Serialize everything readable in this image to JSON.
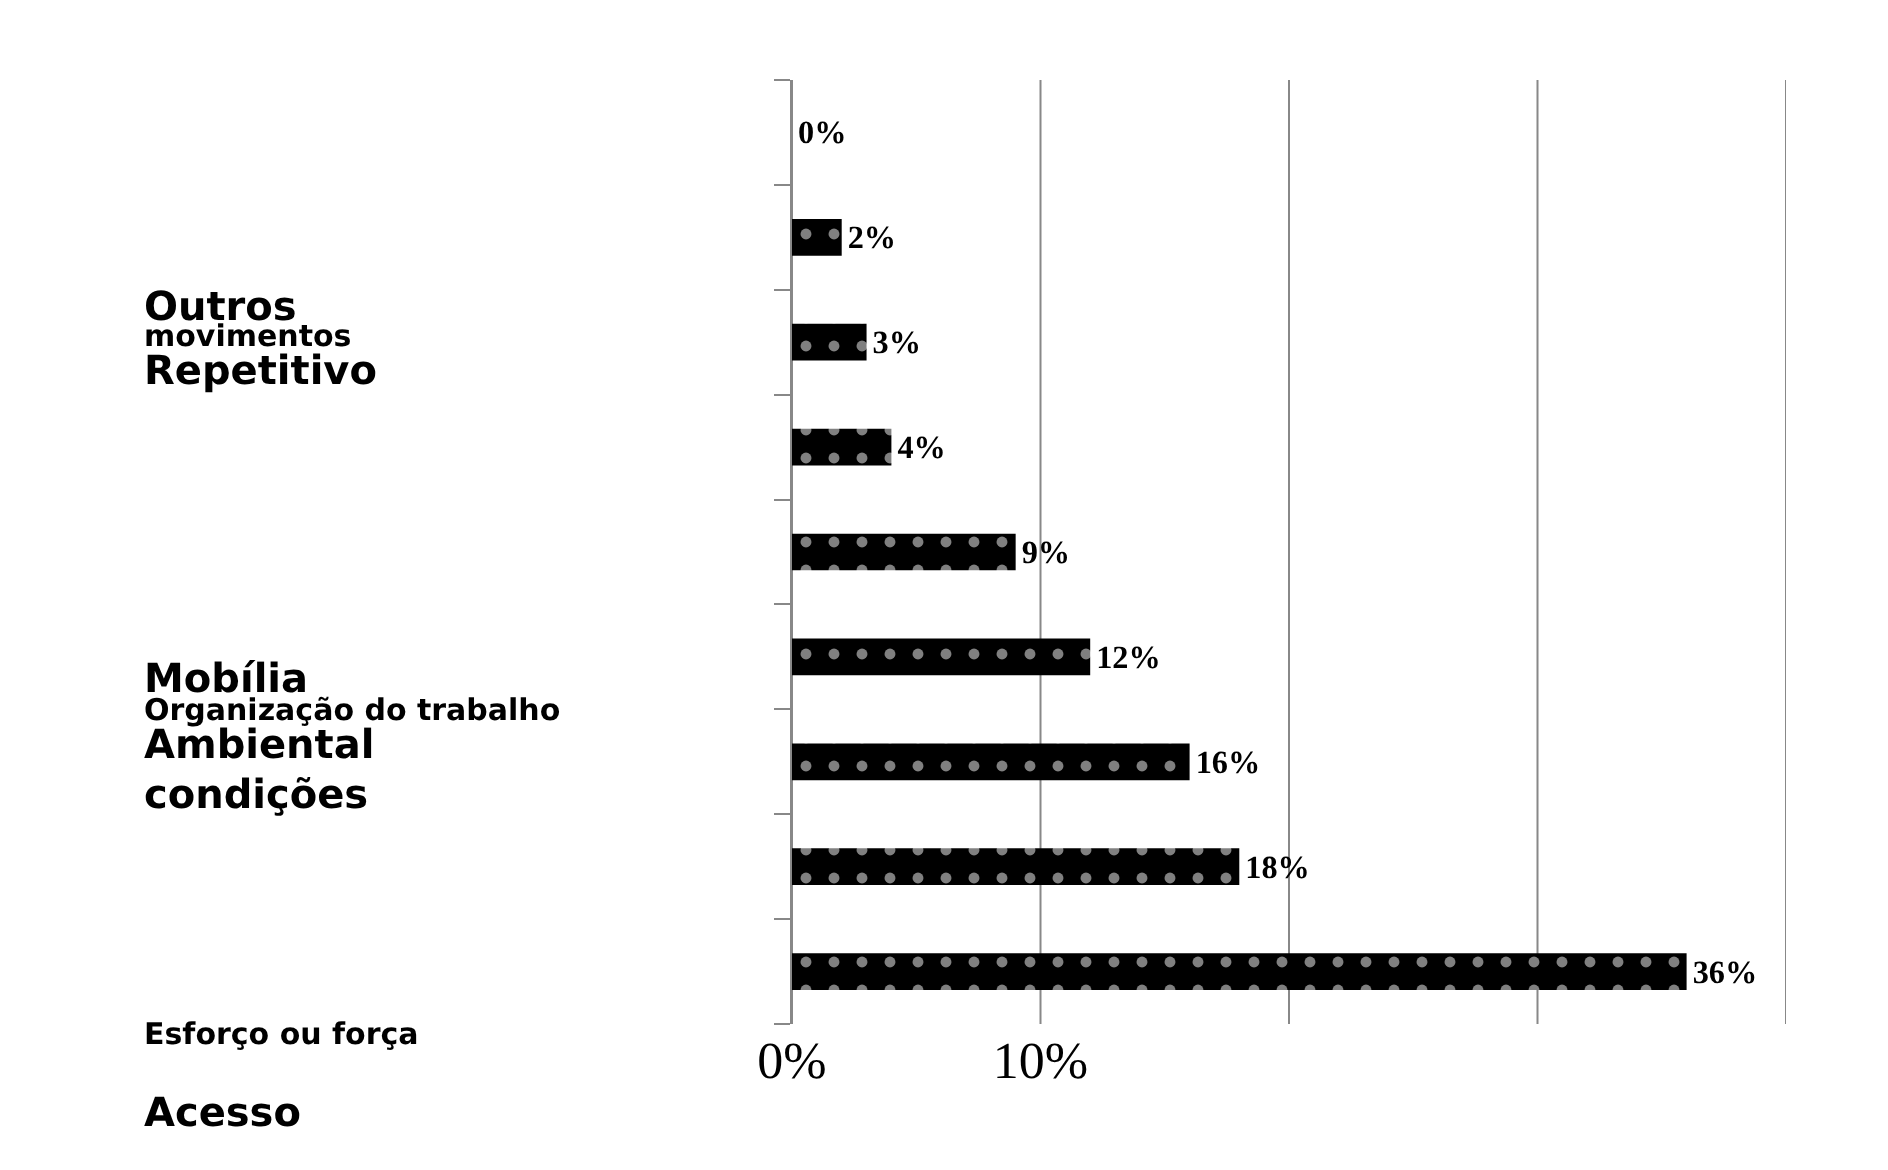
{
  "chart_data": {
    "type": "bar",
    "orientation": "horizontal",
    "categories": [
      null,
      null,
      null,
      null,
      null,
      null,
      null,
      null,
      null
    ],
    "values": [
      0,
      2,
      3,
      4,
      9,
      12,
      16,
      18,
      36
    ],
    "value_labels": [
      "0%",
      "2%",
      "3%",
      "4%",
      "9%",
      "12%",
      "16%",
      "18%",
      "36%"
    ],
    "color": "#000000",
    "xlim": [
      0,
      40
    ],
    "xticks": [
      {
        "value": 0,
        "label": "0%"
      },
      {
        "value": 10,
        "label": "10%"
      },
      {
        "value": 20,
        "label": null
      },
      {
        "value": 30,
        "label": null
      },
      {
        "value": 40,
        "label": null
      }
    ],
    "grid": "x",
    "tick_labels": "x",
    "legend": false,
    "annotations": [
      "Outros",
      "movimentos",
      "Repetitivo",
      "Mobília",
      "Organização do trabalho",
      "Ambiental",
      "condições",
      "Esforço ou força",
      "Acesso"
    ]
  }
}
